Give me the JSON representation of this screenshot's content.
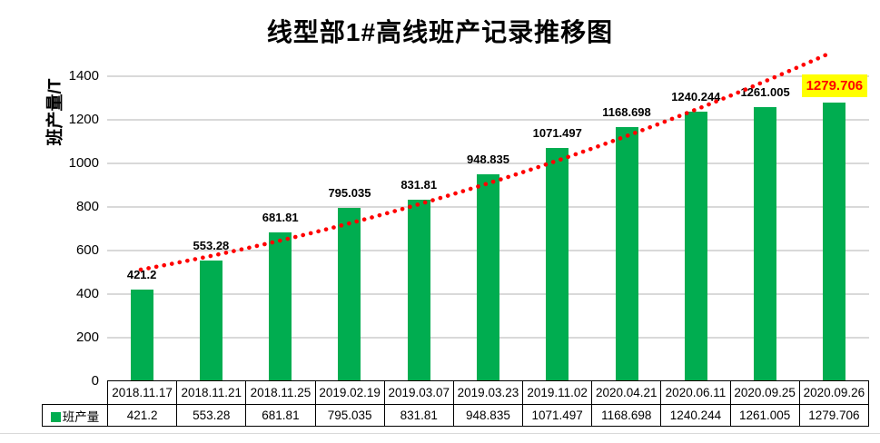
{
  "title": "线型部1#高线班产记录推移图",
  "y_axis": {
    "label": "班产量/T",
    "ticks": [
      0,
      200,
      400,
      600,
      800,
      1000,
      1200,
      1400
    ]
  },
  "legend": {
    "label": "班产量"
  },
  "colors": {
    "bar": "#00ad50",
    "trend_line": "#ff0000",
    "highlight_bg": "#ffff00",
    "highlight_text": "#ff0000",
    "gridline": "#d9d9d9"
  },
  "chart_data": {
    "type": "bar",
    "title": "线型部1#高线班产记录推移图",
    "xlabel": "",
    "ylabel": "班产量/T",
    "ylim": [
      0,
      1500
    ],
    "grid": true,
    "legend_position": "table-left",
    "categories": [
      "2018.11.17",
      "2018.11.21",
      "2018.11.25",
      "2019.02.19",
      "2019.03.07",
      "2019.03.23",
      "2019.11.02",
      "2020.04.21",
      "2020.06.11",
      "2020.09.25",
      "2020.09.26"
    ],
    "series": [
      {
        "name": "班产量",
        "values": [
          421.2,
          553.28,
          681.81,
          795.035,
          831.81,
          948.835,
          1071.497,
          1168.698,
          1240.244,
          1261.005,
          1279.706
        ],
        "value_labels": [
          "421.2",
          "553.28",
          "681.81",
          "795.035",
          "831.81",
          "948.835",
          "1071.497",
          "1168.698",
          "1240.244",
          "1261.005",
          "1279.706"
        ],
        "highlighted_label_index": 10
      }
    ],
    "trendline": {
      "style": "dotted",
      "shape": "curved-upward",
      "color": "#ff0000"
    }
  }
}
